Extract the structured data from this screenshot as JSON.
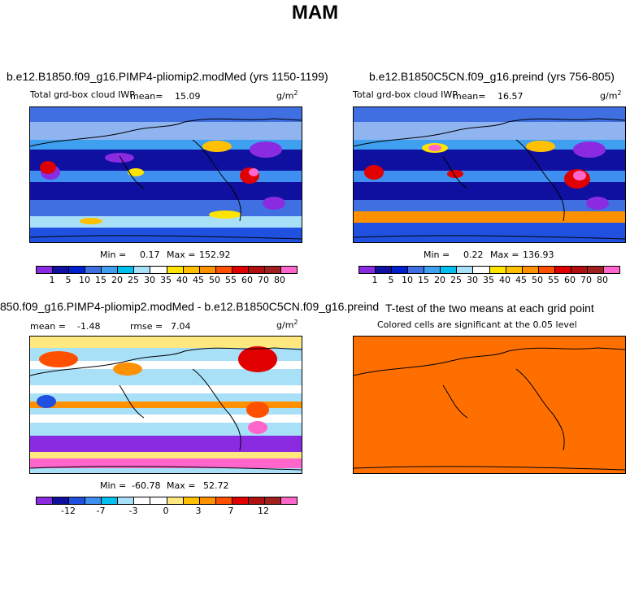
{
  "page": {
    "title": "MAM"
  },
  "panels": {
    "top_left": {
      "title": "b.e12.B1850.f09_g16.PIMP4-pliomip2.modMed (yrs 1150-1199)",
      "variable": "Total grd-box cloud IWP",
      "mean_label": "mean=",
      "mean_value": "15.09",
      "units": "g/m",
      "units_exp": "2",
      "min_label": "Min =",
      "min_value": "0.17",
      "max_label": "Max =",
      "max_value": "152.92"
    },
    "top_right": {
      "title": "b.e12.B1850C5CN.f09_g16.preind (yrs 756-805)",
      "variable": "Total grd-box cloud IWP",
      "mean_label": "mean=",
      "mean_value": "16.57",
      "units": "g/m",
      "units_exp": "2",
      "min_label": "Min =",
      "min_value": "0.22",
      "max_label": "Max =",
      "max_value": "136.93"
    },
    "bottom_left": {
      "title": "850.f09_g16.PIMP4-pliomip2.modMed - b.e12.B1850C5CN.f09_g16.preind",
      "mean_label": "mean =",
      "mean_value": "-1.48",
      "rmse_label": "rmse =",
      "rmse_value": "7.04",
      "units": "g/m",
      "units_exp": "2",
      "min_label": "Min =",
      "min_value": "-60.78",
      "max_label": "Max =",
      "max_value": "52.72"
    },
    "bottom_right": {
      "title": "T-test of the two means at each grid point",
      "subtitle": "Colored cells are significant at the 0.05 level",
      "fill_color": "#ff6f00"
    }
  },
  "colorbars": {
    "absolute": {
      "colors": [
        "#8a2be2",
        "#1010a0",
        "#0020d0",
        "#3f6fe0",
        "#3fa0f0",
        "#00c0f0",
        "#a8e0f8",
        "#ffffff",
        "#ffe400",
        "#ffc000",
        "#ff9000",
        "#ff5000",
        "#e00000",
        "#b01010",
        "#a02020",
        "#ff66cc"
      ],
      "labels": [
        "1",
        "5",
        "10",
        "15",
        "20",
        "25",
        "30",
        "35",
        "40",
        "45",
        "50",
        "55",
        "60",
        "70",
        "80"
      ]
    },
    "difference": {
      "colors": [
        "#8a2be2",
        "#1010a0",
        "#2050e0",
        "#3f8ff0",
        "#00c0f0",
        "#a8e0f8",
        "#ffffff",
        "#ffffff",
        "#ffe880",
        "#ffc000",
        "#ff9000",
        "#ff5000",
        "#e00000",
        "#b01010",
        "#a02020",
        "#ff66cc"
      ],
      "labels": [
        "-12",
        "-7",
        "-3",
        "0",
        "3",
        "7",
        "12"
      ]
    }
  }
}
